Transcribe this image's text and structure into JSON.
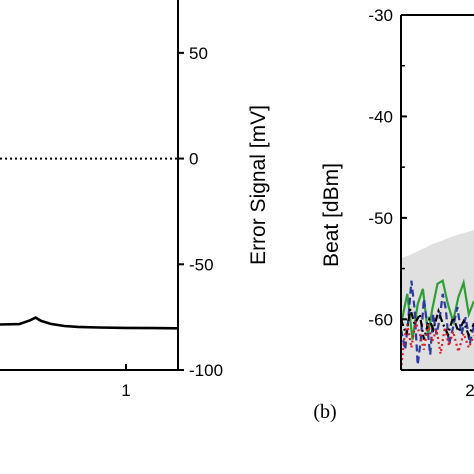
{
  "chart_data": [
    {
      "type": "line",
      "panel": "left",
      "title": "",
      "xlabel": "",
      "y2label": "Error Signal [mV]",
      "x_ticks": [
        "1"
      ],
      "y2_ticks": [
        "50",
        "0",
        "-50",
        "-100"
      ],
      "xlim": [
        0.08,
        1.38
      ],
      "y2lim": [
        -100,
        75
      ],
      "series": [
        {
          "style": "dotted",
          "color": "#000000",
          "x": [
            0.08,
            1.38
          ],
          "y": [
            0,
            0
          ]
        },
        {
          "style": "solid",
          "color": "#000000",
          "x": [
            0.08,
            0.22,
            0.3,
            0.34,
            0.38,
            0.45,
            0.55,
            0.65,
            0.8,
            1.0,
            1.2,
            1.38
          ],
          "y": [
            -78.5,
            -78.3,
            -76.5,
            -75.2,
            -76.8,
            -78.2,
            -79.2,
            -79.6,
            -79.9,
            -80.1,
            -80.2,
            -80.3
          ]
        }
      ]
    },
    {
      "type": "line",
      "panel": "right",
      "title": "",
      "ylabel": "Beat [dBm]",
      "y_ticks": [
        "-30",
        "-40",
        "-50",
        "-60"
      ],
      "x_ticks": [
        "2"
      ],
      "ylim": [
        -65,
        -30
      ],
      "panel_label": "(b)",
      "shaded_band": {
        "color": "#e0e0e0",
        "x": [
          0,
          1,
          2,
          3,
          4,
          5,
          6,
          7
        ],
        "upper": [
          -54.0,
          -53.6,
          -53.1,
          -52.6,
          -52.2,
          -51.8,
          -51.5,
          -51.2
        ],
        "lower": [
          -65,
          -65,
          -65,
          -65,
          -65,
          -65,
          -65,
          -65
        ]
      },
      "series": [
        {
          "style": "solid",
          "color": "#2e9e36",
          "x": [
            0,
            0.6,
            1.1,
            1.6,
            2.1,
            2.6,
            3.0,
            3.5,
            4.0,
            4.5,
            5.0,
            5.5,
            6.0,
            6.5,
            7.0
          ],
          "y": [
            -60.5,
            -57.5,
            -62,
            -58.5,
            -57,
            -61.5,
            -59,
            -56.5,
            -56.2,
            -58.5,
            -60.2,
            -57.8,
            -56.4,
            -59.5,
            -58.2
          ]
        },
        {
          "style": "dashed",
          "color": "#2b3a9b",
          "x": [
            0,
            0.4,
            0.7,
            1.0,
            1.3,
            1.6,
            1.9,
            2.2,
            2.5,
            2.8,
            3.1,
            3.4,
            3.7,
            4.0,
            4.3,
            4.6,
            5.0,
            5.4,
            5.8,
            6.2,
            6.6,
            7.0
          ],
          "y": [
            -61,
            -63,
            -60,
            -56.2,
            -59,
            -64.5,
            -62,
            -58,
            -60.5,
            -63.5,
            -59.5,
            -61.5,
            -60,
            -57.5,
            -59,
            -62.5,
            -60.8,
            -58.8,
            -61.5,
            -59.8,
            -62.4,
            -60.6
          ]
        },
        {
          "style": "dashdot",
          "color": "#000000",
          "x": [
            0,
            0.5,
            0.9,
            1.3,
            1.8,
            2.2,
            2.7,
            3.1,
            3.6,
            4.0,
            4.5,
            5.0,
            5.5,
            6.0,
            6.5,
            7.0
          ],
          "y": [
            -60,
            -61.5,
            -59,
            -60.5,
            -59.5,
            -62,
            -60,
            -61,
            -59.2,
            -60.4,
            -61.5,
            -59.8,
            -61.2,
            -60.2,
            -61.6,
            -60.4
          ]
        },
        {
          "style": "dotted",
          "color": "#d4202a",
          "x": [
            0,
            0.3,
            0.6,
            1.0,
            1.4,
            1.8,
            2.2,
            2.6,
            3.0,
            3.4,
            3.8,
            4.2,
            4.6,
            5.0,
            5.5,
            6.0,
            6.5,
            7.0
          ],
          "y": [
            -65,
            -62,
            -60.5,
            -62.8,
            -60.2,
            -61.5,
            -63,
            -60.5,
            -62.2,
            -61,
            -63.4,
            -60.8,
            -62.6,
            -61.2,
            -63.2,
            -61.4,
            -62.8,
            -61.6
          ]
        }
      ]
    }
  ]
}
